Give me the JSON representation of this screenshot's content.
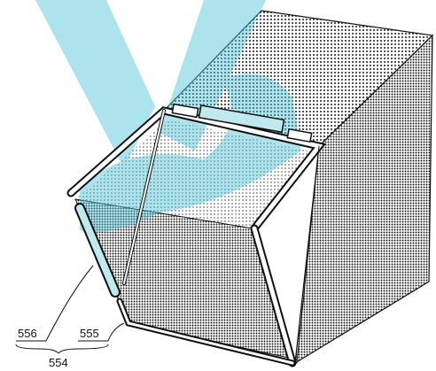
{
  "callouts": [
    {
      "label": "556"
    },
    {
      "label": "555"
    },
    {
      "label": "554"
    }
  ]
}
